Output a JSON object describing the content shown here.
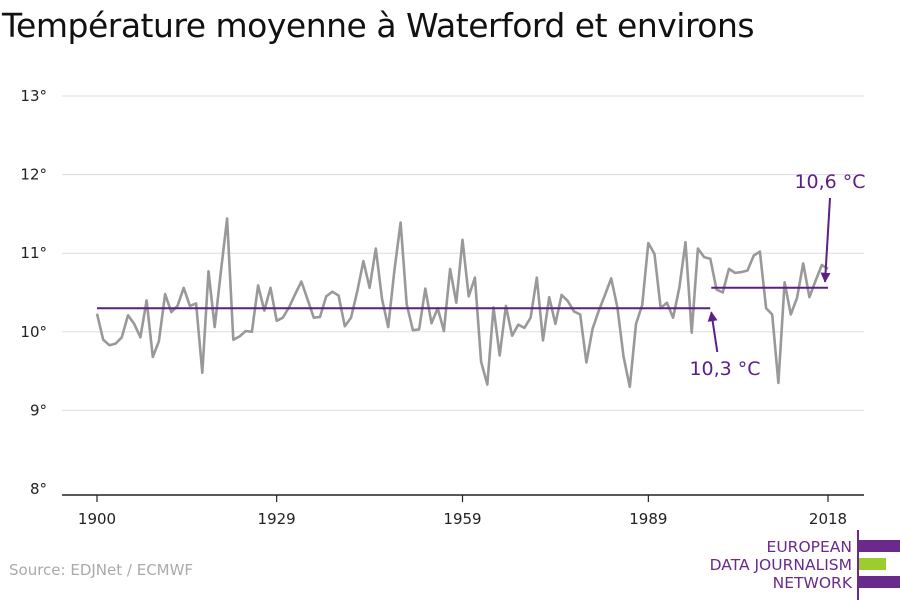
{
  "title": "Température moyenne à Waterford et environs",
  "source": "Source: EDJNet / ECMWF",
  "logo": {
    "lines": [
      "EUROPEAN",
      "DATA JOURNALISM",
      "NETWORK"
    ],
    "color_purple": "#6a2a8c",
    "color_green": "#9ccc2e"
  },
  "chart_data": {
    "type": "line",
    "title": "Température moyenne à Waterford et environs",
    "xlabel": "",
    "ylabel": "",
    "xlim": [
      1900,
      2018
    ],
    "ylim": [
      8,
      13
    ],
    "x_ticks": [
      1900,
      1929,
      1959,
      1989,
      2018
    ],
    "y_ticks": [
      8,
      9,
      10,
      11,
      12,
      13
    ],
    "y_tick_labels": [
      "8°",
      "9°",
      "10°",
      "11°",
      "12°",
      "13°"
    ],
    "grid": "horizontal",
    "line_color": "#999999",
    "series": [
      {
        "x": [
          1900,
          1901,
          1902,
          1903,
          1904,
          1905,
          1906,
          1907,
          1908,
          1909,
          1910,
          1911,
          1912,
          1913,
          1914,
          1915,
          1916,
          1917,
          1918,
          1919,
          1920,
          1921,
          1922,
          1923,
          1924,
          1925,
          1926,
          1927,
          1928,
          1929,
          1930,
          1931,
          1932,
          1933,
          1934,
          1935,
          1936,
          1937,
          1938,
          1939,
          1940,
          1941,
          1942,
          1943,
          1944,
          1945,
          1946,
          1947,
          1948,
          1949,
          1950,
          1951,
          1952,
          1953,
          1954,
          1955,
          1956,
          1957,
          1958,
          1959,
          1960,
          1961,
          1962,
          1963,
          1964,
          1965,
          1966,
          1967,
          1968,
          1969,
          1970,
          1971,
          1972,
          1973,
          1974,
          1975,
          1976,
          1977,
          1978,
          1979,
          1980,
          1981,
          1982,
          1983,
          1984,
          1985,
          1986,
          1987,
          1988,
          1989,
          1990,
          1991,
          1992,
          1993,
          1994,
          1995,
          1996,
          1997,
          1998,
          1999,
          2000,
          2001,
          2002,
          2003,
          2004,
          2005,
          2006,
          2007,
          2008,
          2009,
          2010,
          2011,
          2012,
          2013,
          2014,
          2015,
          2016,
          2017,
          2018
        ],
        "values": [
          10.23,
          9.9,
          9.83,
          9.85,
          9.93,
          10.21,
          10.1,
          9.93,
          10.4,
          9.68,
          9.88,
          10.48,
          10.25,
          10.33,
          10.56,
          10.33,
          10.36,
          9.48,
          10.77,
          10.06,
          10.77,
          11.44,
          9.9,
          9.94,
          10.01,
          10.0,
          10.59,
          10.27,
          10.56,
          10.14,
          10.18,
          10.31,
          10.48,
          10.64,
          10.41,
          10.18,
          10.19,
          10.45,
          10.51,
          10.46,
          10.07,
          10.18,
          10.51,
          10.9,
          10.56,
          11.06,
          10.42,
          10.06,
          10.78,
          11.39,
          10.35,
          10.02,
          10.03,
          10.55,
          10.11,
          10.3,
          10.01,
          10.8,
          10.37,
          11.17,
          10.45,
          10.69,
          9.62,
          9.33,
          10.31,
          9.7,
          10.33,
          9.95,
          10.09,
          10.05,
          10.18,
          10.69,
          9.89,
          10.44,
          10.1,
          10.47,
          10.39,
          10.26,
          10.22,
          9.61,
          10.04,
          10.27,
          10.47,
          10.68,
          10.31,
          9.68,
          9.3,
          10.1,
          10.34,
          11.13,
          10.99,
          10.3,
          10.37,
          10.18,
          10.56,
          11.14,
          9.99,
          11.06,
          10.95,
          10.93,
          10.54,
          10.5,
          10.8,
          10.75,
          10.76,
          10.78,
          10.97,
          11.02,
          10.3,
          10.22,
          9.35,
          10.63,
          10.22,
          10.43,
          10.87,
          10.44,
          10.65,
          10.85,
          10.8
        ]
      }
    ],
    "averages": [
      {
        "label": "10,3 °C",
        "value": 10.3,
        "x_start": 1900,
        "x_end": 1999
      },
      {
        "label": "10,6 °C",
        "value": 10.56,
        "x_start": 1999,
        "x_end": 2018
      }
    ],
    "average_color": "#5b1f86"
  }
}
